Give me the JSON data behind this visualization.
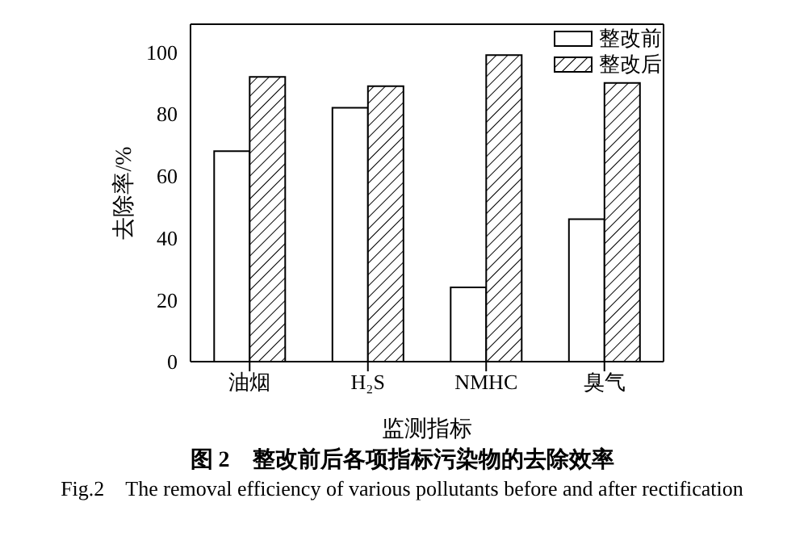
{
  "chart_data": {
    "type": "bar",
    "title": "图 2　整改前后各项指标污染物的去除效率",
    "subtitle": "Fig.2　The removal efficiency of various pollutants before and after rectification",
    "xlabel": "监测指标",
    "ylabel": "去除率/%",
    "categories": [
      "油烟",
      "H₂S",
      "NMHC",
      "臭气"
    ],
    "series": [
      {
        "name": "整改前",
        "color": "#ffffff",
        "values": [
          68,
          82,
          24,
          46
        ]
      },
      {
        "name": "整改后",
        "color": "#000000",
        "values": [
          92,
          89,
          99,
          90
        ]
      }
    ],
    "ylim": [
      0,
      109
    ],
    "yticks": [
      0,
      20,
      40,
      60,
      80,
      100
    ],
    "grid": false,
    "legend": "top right"
  }
}
